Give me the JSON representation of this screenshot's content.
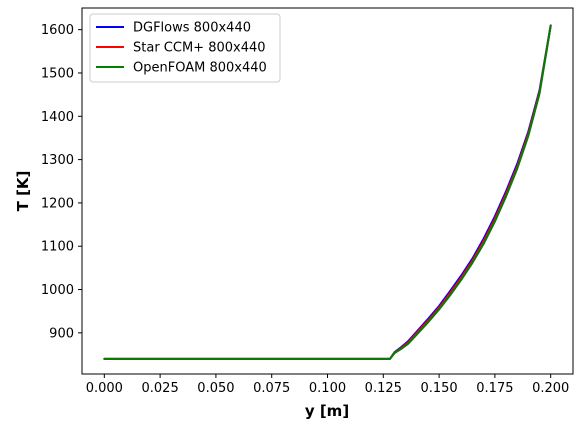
{
  "chart_data": {
    "type": "line",
    "title": "",
    "xlabel": "y [m]",
    "ylabel": "T [K]",
    "xlim": [
      -0.01,
      0.21
    ],
    "ylim": [
      805,
      1650
    ],
    "xticks": [
      "0.000",
      "0.025",
      "0.050",
      "0.075",
      "0.100",
      "0.125",
      "0.150",
      "0.175",
      "0.200"
    ],
    "yticks": [
      "900",
      "1000",
      "1100",
      "1200",
      "1300",
      "1400",
      "1500",
      "1600"
    ],
    "grid": false,
    "legend_position": "top-left",
    "series": [
      {
        "name": "DGFlows 800x440",
        "color": "#0000ff",
        "x": [
          0.0,
          0.05,
          0.1,
          0.128,
          0.13,
          0.133,
          0.136,
          0.14,
          0.145,
          0.15,
          0.155,
          0.16,
          0.165,
          0.17,
          0.175,
          0.18,
          0.185,
          0.19,
          0.195,
          0.2
        ],
        "y": [
          840,
          840,
          840,
          840,
          855,
          867,
          880,
          903,
          932,
          962,
          997,
          1033,
          1072,
          1118,
          1169,
          1227,
          1290,
          1365,
          1460,
          1610
        ]
      },
      {
        "name": "Star CCM+ 800x440",
        "color": "#ff0000",
        "x": [
          0.0,
          0.05,
          0.1,
          0.128,
          0.13,
          0.133,
          0.136,
          0.14,
          0.145,
          0.15,
          0.155,
          0.16,
          0.165,
          0.17,
          0.175,
          0.18,
          0.185,
          0.19,
          0.195,
          0.2
        ],
        "y": [
          840,
          840,
          840,
          840,
          854,
          865,
          877,
          900,
          928,
          958,
          992,
          1028,
          1067,
          1112,
          1163,
          1221,
          1284,
          1360,
          1456,
          1609
        ]
      },
      {
        "name": "OpenFOAM 800x440",
        "color": "#008000",
        "x": [
          0.0,
          0.05,
          0.1,
          0.128,
          0.13,
          0.133,
          0.136,
          0.14,
          0.145,
          0.15,
          0.155,
          0.16,
          0.165,
          0.17,
          0.175,
          0.18,
          0.185,
          0.19,
          0.195,
          0.2
        ],
        "y": [
          840,
          840,
          840,
          840,
          853,
          863,
          874,
          896,
          924,
          954,
          987,
          1023,
          1062,
          1106,
          1157,
          1215,
          1279,
          1355,
          1452,
          1608
        ]
      }
    ]
  }
}
